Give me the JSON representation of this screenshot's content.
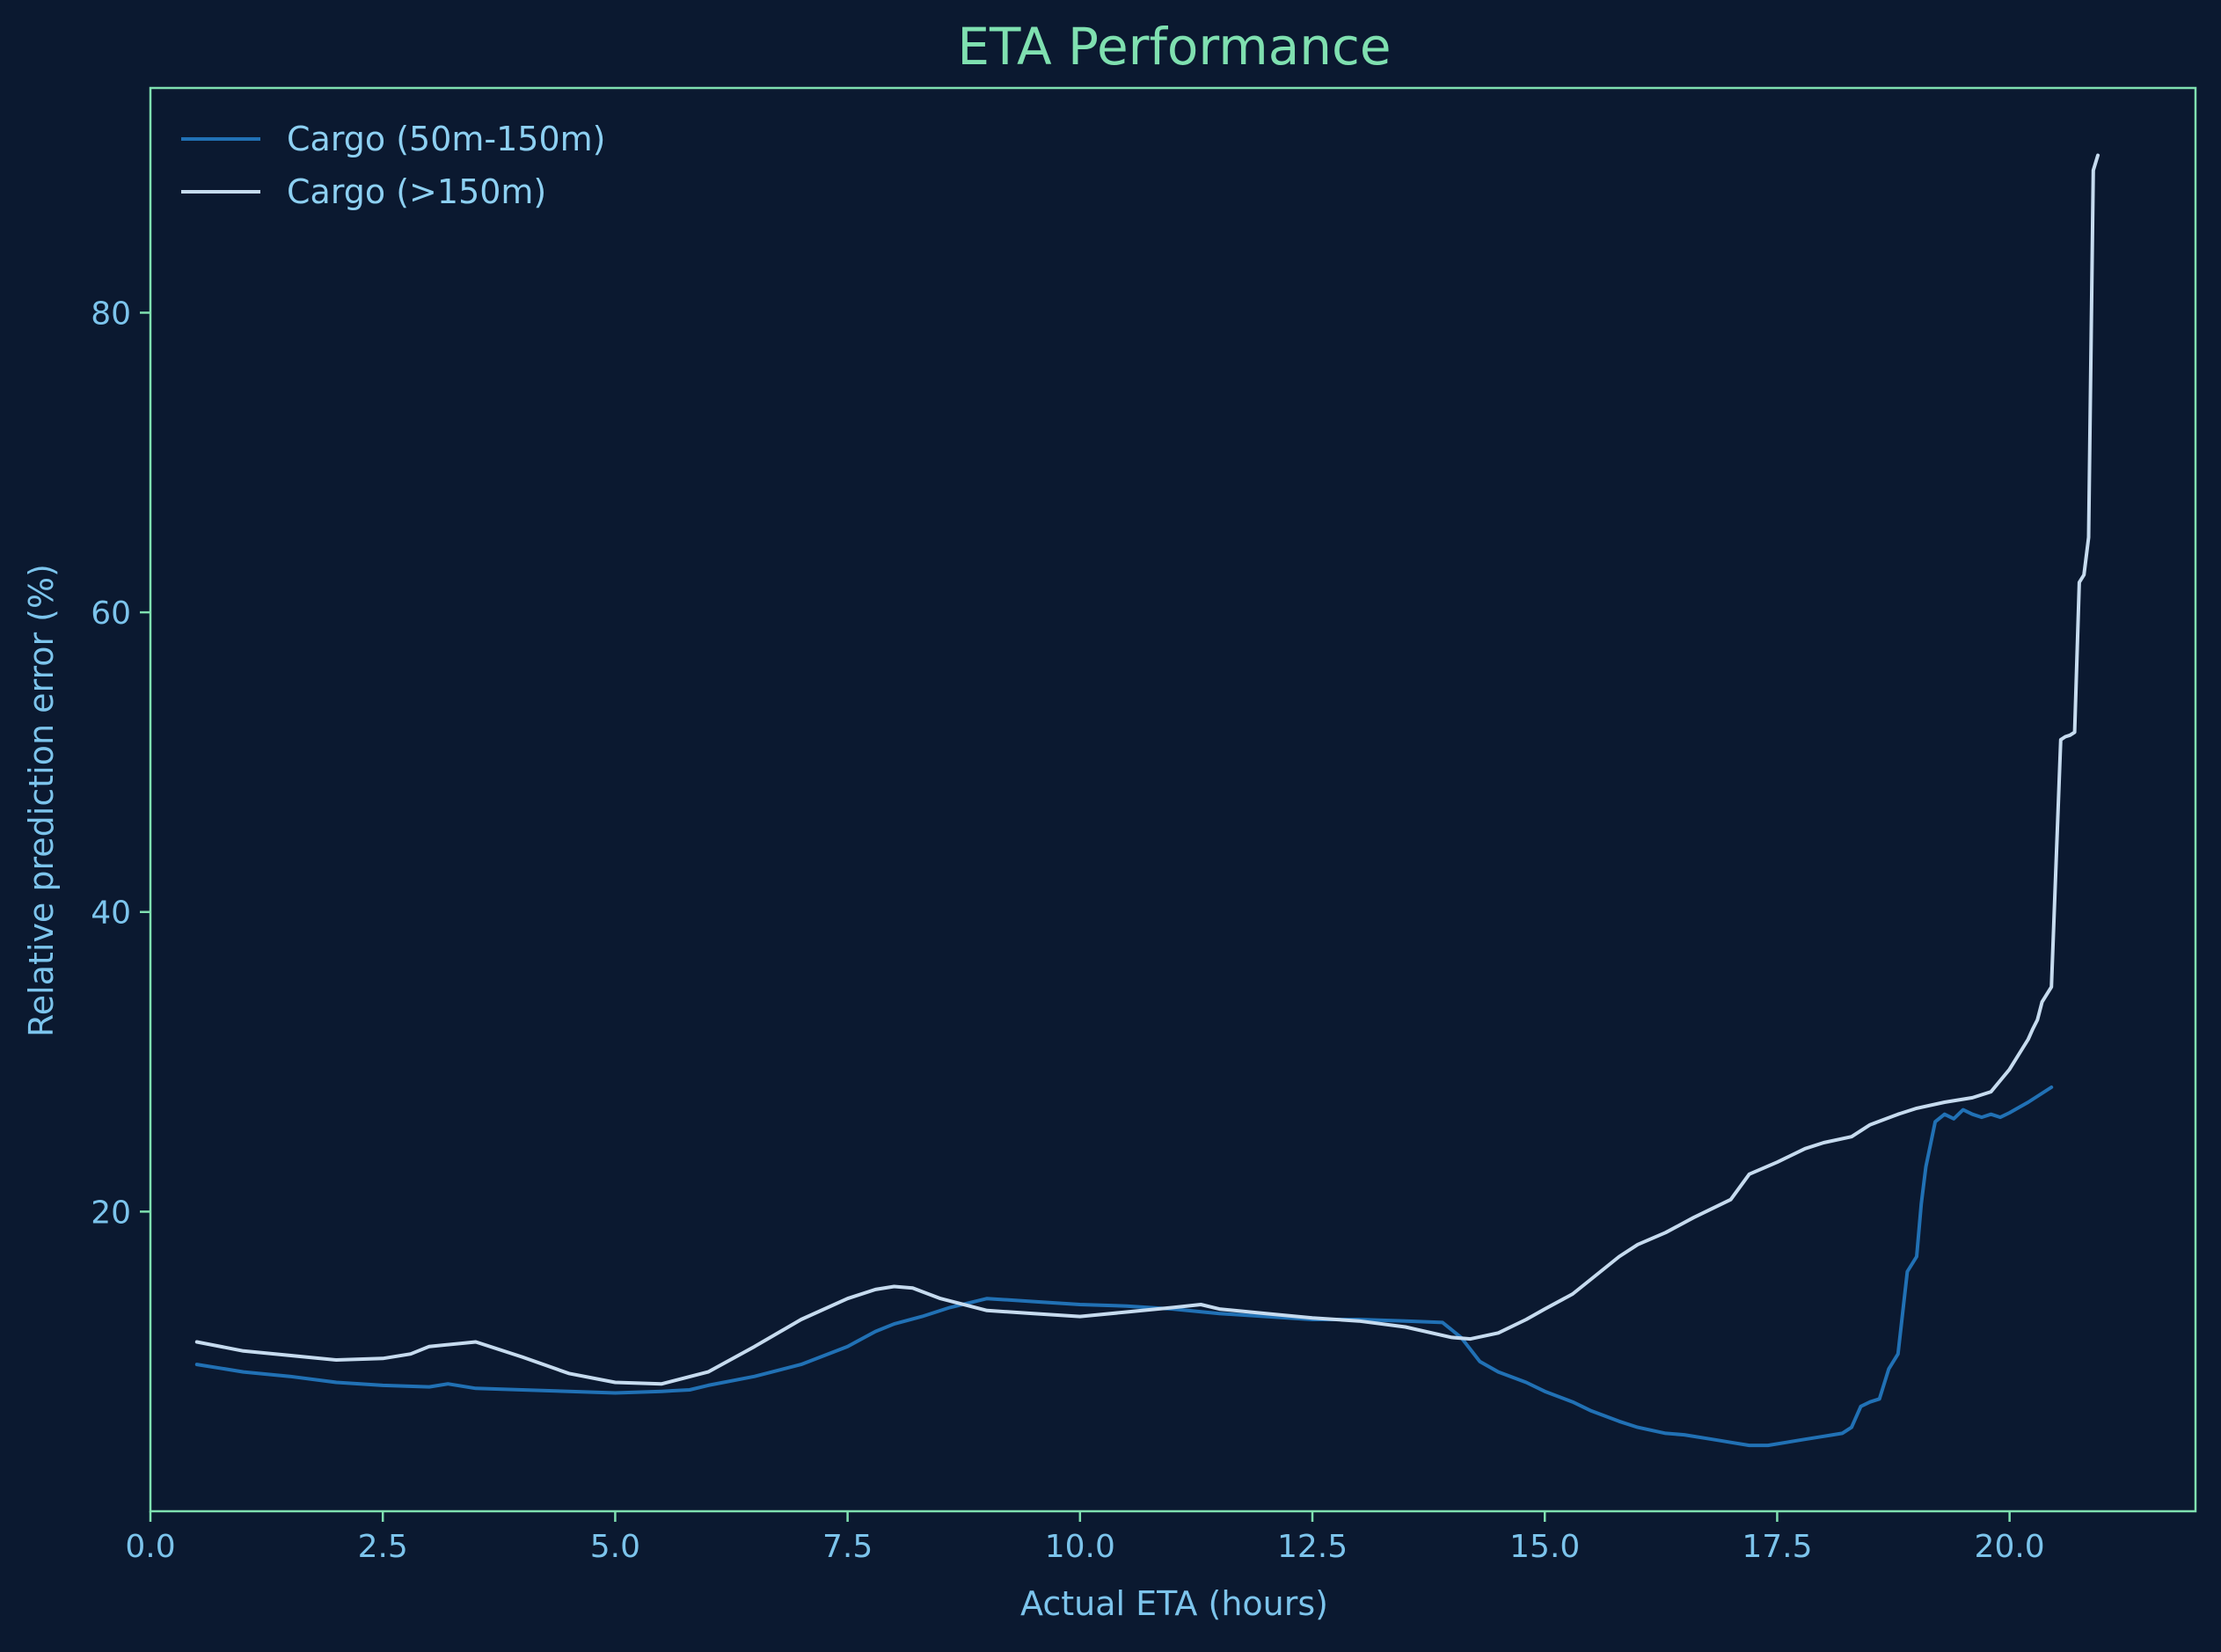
{
  "chart_data": {
    "type": "line",
    "title": "ETA Performance",
    "xlabel": "Actual ETA (hours)",
    "ylabel": "Relative prediction error (%)",
    "xlim": [
      0,
      22
    ],
    "ylim": [
      0,
      95
    ],
    "xticks": [
      0.0,
      2.5,
      5.0,
      7.5,
      10.0,
      12.5,
      15.0,
      17.5,
      20.0
    ],
    "xtick_labels": [
      "0.0",
      "2.5",
      "5.0",
      "7.5",
      "10.0",
      "12.5",
      "15.0",
      "17.5",
      "20.0"
    ],
    "yticks": [
      20,
      40,
      60,
      80
    ],
    "ytick_labels": [
      "20",
      "40",
      "60",
      "80"
    ],
    "grid": false,
    "legend_position": "top-left",
    "colors": {
      "background": "#0b1930",
      "frame": "#7fe0b0",
      "title": "#7fe0b0",
      "axis_text": "#7cc4ec"
    },
    "series": [
      {
        "name": "Cargo (50m-150m)",
        "color": "#2171b5",
        "x": [
          0.5,
          1.0,
          1.5,
          2.0,
          2.5,
          3.0,
          3.2,
          3.5,
          4.0,
          4.5,
          5.0,
          5.5,
          5.8,
          6.0,
          6.5,
          7.0,
          7.5,
          7.8,
          8.0,
          8.3,
          8.6,
          9.0,
          9.5,
          10.0,
          10.5,
          11.0,
          11.5,
          12.0,
          12.5,
          13.0,
          13.5,
          13.9,
          14.1,
          14.3,
          14.5,
          14.8,
          15.0,
          15.3,
          15.5,
          15.8,
          16.0,
          16.3,
          16.5,
          16.8,
          17.0,
          17.2,
          17.4,
          17.6,
          17.8,
          18.0,
          18.1,
          18.2,
          18.3,
          18.4,
          18.5,
          18.6,
          18.7,
          18.8,
          18.9,
          19.0,
          19.05,
          19.1,
          19.2,
          19.3,
          19.4,
          19.5,
          19.6,
          19.7,
          19.8,
          19.9,
          20.0,
          20.2,
          20.45
        ],
        "y": [
          9.8,
          9.3,
          9.0,
          8.6,
          8.4,
          8.3,
          8.5,
          8.2,
          8.1,
          8.0,
          7.9,
          8.0,
          8.1,
          8.4,
          9.0,
          9.8,
          11.0,
          12.0,
          12.5,
          13.0,
          13.6,
          14.2,
          14.0,
          13.8,
          13.7,
          13.5,
          13.2,
          13.0,
          12.8,
          12.8,
          12.7,
          12.6,
          11.6,
          10.0,
          9.3,
          8.6,
          8.0,
          7.3,
          6.7,
          6.0,
          5.6,
          5.2,
          5.1,
          4.8,
          4.6,
          4.4,
          4.4,
          4.6,
          4.8,
          5.0,
          5.1,
          5.2,
          5.6,
          7.0,
          7.3,
          7.5,
          9.5,
          10.5,
          16.0,
          17.0,
          20.5,
          23.0,
          26.0,
          26.5,
          26.2,
          26.8,
          26.5,
          26.3,
          26.5,
          26.3,
          26.6,
          27.3,
          28.3
        ]
      },
      {
        "name": "Cargo (>150m)",
        "color": "#c6dbef",
        "x": [
          0.5,
          1.0,
          1.5,
          2.0,
          2.5,
          2.8,
          3.0,
          3.5,
          4.0,
          4.5,
          5.0,
          5.5,
          6.0,
          6.5,
          7.0,
          7.5,
          7.8,
          8.0,
          8.2,
          8.5,
          9.0,
          9.5,
          10.0,
          10.5,
          11.0,
          11.3,
          11.5,
          12.0,
          12.5,
          13.0,
          13.5,
          14.0,
          14.2,
          14.5,
          14.8,
          15.0,
          15.3,
          15.5,
          15.8,
          16.0,
          16.3,
          16.6,
          17.0,
          17.2,
          17.5,
          17.8,
          18.0,
          18.3,
          18.5,
          18.8,
          19.0,
          19.3,
          19.6,
          19.8,
          20.0,
          20.1,
          20.2,
          20.25,
          20.3,
          20.35,
          20.45,
          20.55,
          20.6,
          20.65,
          20.7,
          20.75,
          20.8,
          20.85,
          20.9,
          20.95
        ],
        "y": [
          11.3,
          10.7,
          10.4,
          10.1,
          10.2,
          10.5,
          11.0,
          11.3,
          10.3,
          9.2,
          8.6,
          8.5,
          9.3,
          11.0,
          12.8,
          14.2,
          14.8,
          15.0,
          14.9,
          14.2,
          13.4,
          13.2,
          13.0,
          13.3,
          13.6,
          13.8,
          13.5,
          13.2,
          12.9,
          12.7,
          12.3,
          11.6,
          11.5,
          11.9,
          12.8,
          13.5,
          14.5,
          15.5,
          17.0,
          17.8,
          18.6,
          19.6,
          20.8,
          22.5,
          23.3,
          24.2,
          24.6,
          25.0,
          25.8,
          26.5,
          26.9,
          27.3,
          27.6,
          28.0,
          29.5,
          30.5,
          31.5,
          32.2,
          32.8,
          34.0,
          35.0,
          51.5,
          51.7,
          51.8,
          52.0,
          62.0,
          62.5,
          65.0,
          89.5,
          90.5
        ]
      }
    ]
  }
}
